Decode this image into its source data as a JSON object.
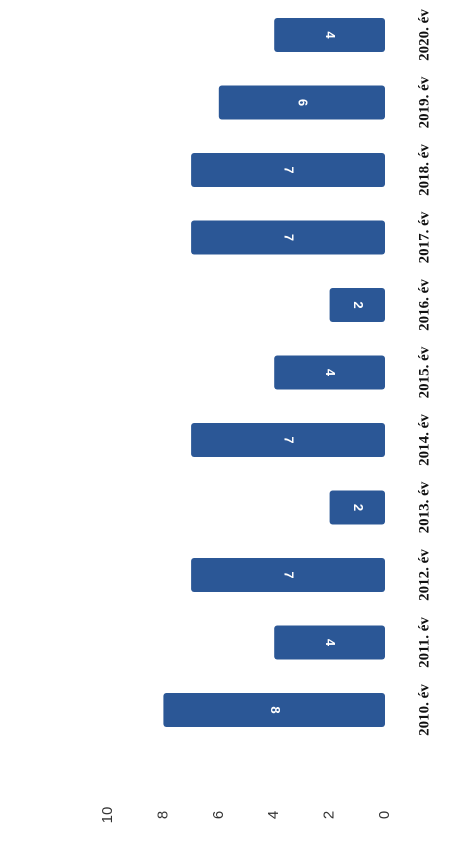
{
  "chart_data": {
    "type": "bar",
    "orientation": "rotated",
    "categories": [
      "2010. év",
      "2011. év",
      "2012. év",
      "2013. év",
      "2014. év",
      "2015. év",
      "2016. év",
      "2017. év",
      "2018. év",
      "2019. év",
      "2020. év"
    ],
    "values": [
      8,
      4,
      7,
      2,
      7,
      4,
      2,
      7,
      7,
      6,
      4
    ],
    "color": "#2b5796",
    "ylim": [
      0,
      10
    ],
    "yticks": [
      0,
      2,
      4,
      6,
      8,
      10
    ]
  }
}
